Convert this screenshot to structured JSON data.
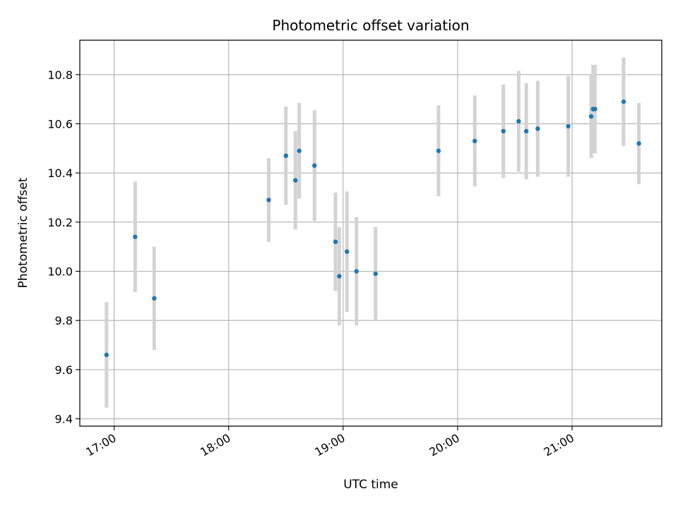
{
  "chart_data": {
    "type": "scatter",
    "title": "Photometric offset variation",
    "xlabel": "UTC time",
    "ylabel": "Photometric offset",
    "x_ticks": [
      "17:00",
      "18:00",
      "19:00",
      "20:00",
      "21:00"
    ],
    "y_ticks": [
      "9.4",
      "9.6",
      "9.8",
      "10.0",
      "10.2",
      "10.4",
      "10.6",
      "10.8"
    ],
    "xlim": [
      "16:42",
      "21:47"
    ],
    "ylim": [
      9.37,
      10.94
    ],
    "grid": true,
    "colors": {
      "marker": "#1f77b4",
      "errorbar": "#d3d3d3",
      "grid": "#b0b0b0"
    },
    "points": [
      {
        "x": "16:56",
        "y": 9.66,
        "err": 0.215
      },
      {
        "x": "17:11",
        "y": 10.14,
        "err": 0.225
      },
      {
        "x": "17:21",
        "y": 9.89,
        "err": 0.21
      },
      {
        "x": "18:21",
        "y": 10.29,
        "err": 0.17
      },
      {
        "x": "18:30",
        "y": 10.47,
        "err": 0.2
      },
      {
        "x": "18:35",
        "y": 10.37,
        "err": 0.2
      },
      {
        "x": "18:37",
        "y": 10.49,
        "err": 0.195
      },
      {
        "x": "18:45",
        "y": 10.43,
        "err": 0.225
      },
      {
        "x": "18:56",
        "y": 10.12,
        "err": 0.2
      },
      {
        "x": "18:58",
        "y": 9.98,
        "err": 0.2
      },
      {
        "x": "19:02",
        "y": 10.08,
        "err": 0.245
      },
      {
        "x": "19:07",
        "y": 10.0,
        "err": 0.22
      },
      {
        "x": "19:17",
        "y": 9.99,
        "err": 0.19
      },
      {
        "x": "19:50",
        "y": 10.49,
        "err": 0.185
      },
      {
        "x": "20:09",
        "y": 10.53,
        "err": 0.185
      },
      {
        "x": "20:24",
        "y": 10.57,
        "err": 0.19
      },
      {
        "x": "20:32",
        "y": 10.61,
        "err": 0.205
      },
      {
        "x": "20:36",
        "y": 10.57,
        "err": 0.195
      },
      {
        "x": "20:42",
        "y": 10.58,
        "err": 0.195
      },
      {
        "x": "20:58",
        "y": 10.59,
        "err": 0.205
      },
      {
        "x": "21:10",
        "y": 10.63,
        "err": 0.17
      },
      {
        "x": "21:11",
        "y": 10.66,
        "err": 0.18
      },
      {
        "x": "21:12",
        "y": 10.66,
        "err": 0.18
      },
      {
        "x": "21:27",
        "y": 10.69,
        "err": 0.18
      },
      {
        "x": "21:35",
        "y": 10.52,
        "err": 0.165
      }
    ]
  }
}
